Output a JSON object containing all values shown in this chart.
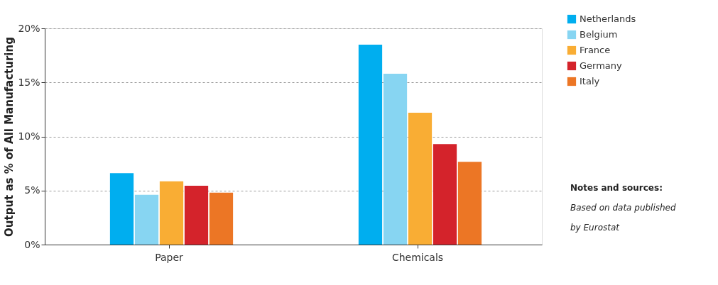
{
  "chart_data": {
    "type": "bar",
    "ylabel": "Output as % of All Manufacturing",
    "categories": [
      "Paper",
      "Chemicals"
    ],
    "series": [
      {
        "name": "Netherlands",
        "color": "#00aeef",
        "values": [
          6.6,
          18.5
        ]
      },
      {
        "name": "Belgium",
        "color": "#87d5f2",
        "values": [
          4.6,
          15.8
        ]
      },
      {
        "name": "France",
        "color": "#f9ad34",
        "values": [
          5.85,
          12.2
        ]
      },
      {
        "name": "Germany",
        "color": "#d4232b",
        "values": [
          5.45,
          9.3
        ]
      },
      {
        "name": "Italy",
        "color": "#ec7625",
        "values": [
          4.8,
          7.65
        ]
      }
    ],
    "ylim": [
      0,
      20
    ],
    "yticks": [
      {
        "value": 0,
        "label": "0%"
      },
      {
        "value": 5,
        "label": "5%"
      },
      {
        "value": 10,
        "label": "10%"
      },
      {
        "value": 15,
        "label": "15%"
      },
      {
        "value": 20,
        "label": "20%"
      }
    ],
    "grid": "y",
    "legend": "top right",
    "annotations": [
      "Notes and sources:",
      "Based on data published",
      "by Eurostat"
    ]
  }
}
